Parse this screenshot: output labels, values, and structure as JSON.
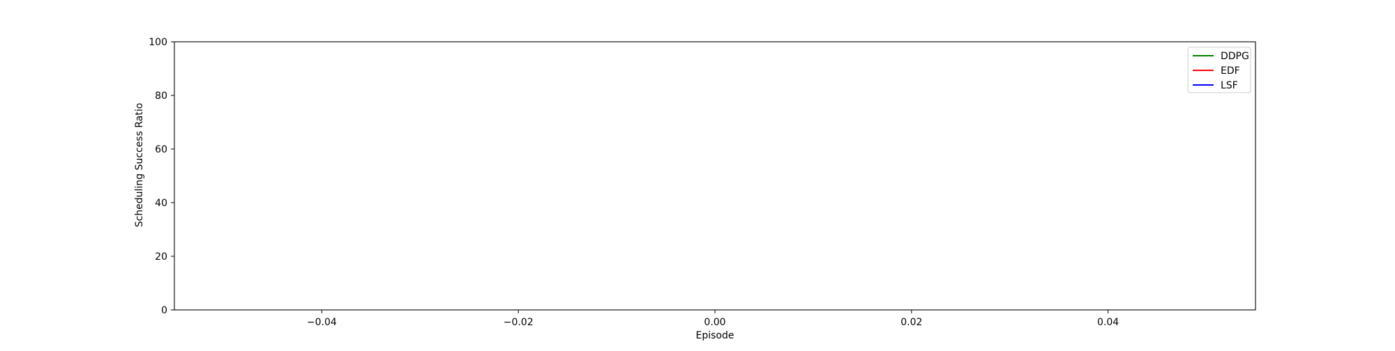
{
  "chart_data": {
    "type": "line",
    "title": "",
    "xlabel": "Episode",
    "ylabel": "Scheduling Success Ratio",
    "xlim": [
      -0.055,
      0.055
    ],
    "ylim": [
      0,
      100
    ],
    "x_ticks": [
      -0.04,
      -0.02,
      0.0,
      0.02,
      0.04
    ],
    "x_tick_labels": [
      "−0.04",
      "−0.02",
      "0.00",
      "0.02",
      "0.04"
    ],
    "y_ticks": [
      0,
      20,
      40,
      60,
      80,
      100
    ],
    "y_tick_labels": [
      "0",
      "20",
      "40",
      "60",
      "80",
      "100"
    ],
    "grid": false,
    "legend_position": "top-right",
    "series": [
      {
        "name": "DDPG",
        "color": "#008000",
        "x": [],
        "y": []
      },
      {
        "name": "EDF",
        "color": "#ff0000",
        "x": [],
        "y": []
      },
      {
        "name": "LSF",
        "color": "#0000ff",
        "x": [],
        "y": []
      }
    ]
  }
}
